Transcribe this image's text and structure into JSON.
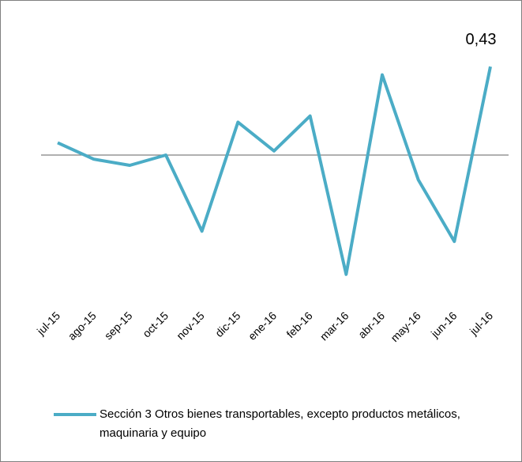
{
  "chart_data": {
    "type": "line",
    "categories": [
      "jul-15",
      "ago-15",
      "sep-15",
      "oct-15",
      "nov-15",
      "dic-15",
      "ene-16",
      "feb-16",
      "mar-16",
      "abr-16",
      "may-16",
      "jun-16",
      "jul-16"
    ],
    "series": [
      {
        "name": "Sección 3 Otros bienes transportables, excepto productos metálicos, maquinaria y equipo",
        "color": "#4bacc6",
        "values": [
          0.06,
          -0.02,
          -0.05,
          0.0,
          -0.37,
          0.16,
          0.02,
          0.19,
          -0.58,
          0.39,
          -0.12,
          -0.42,
          0.43
        ],
        "value_labels": [
          null,
          null,
          null,
          null,
          null,
          null,
          null,
          null,
          null,
          null,
          null,
          null,
          "0,43"
        ]
      }
    ],
    "ylim": [
      -0.7,
      0.5
    ],
    "legend": "bottom"
  }
}
